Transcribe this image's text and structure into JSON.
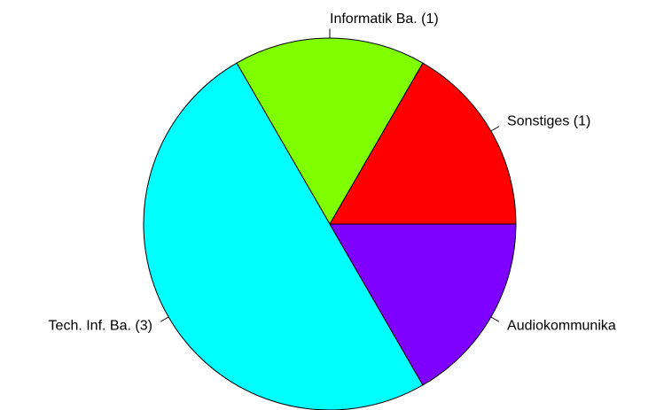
{
  "chart_data": {
    "type": "pie",
    "categories": [
      "Sonstiges (1)",
      "Informatik Ba. (1)",
      "Tech. Inf. Ba. (3)",
      "Audiokommunika"
    ],
    "values": [
      1,
      1,
      3,
      1
    ],
    "colors": [
      "#ff0000",
      "#80ff00",
      "#00ffff",
      "#8000ff"
    ]
  }
}
